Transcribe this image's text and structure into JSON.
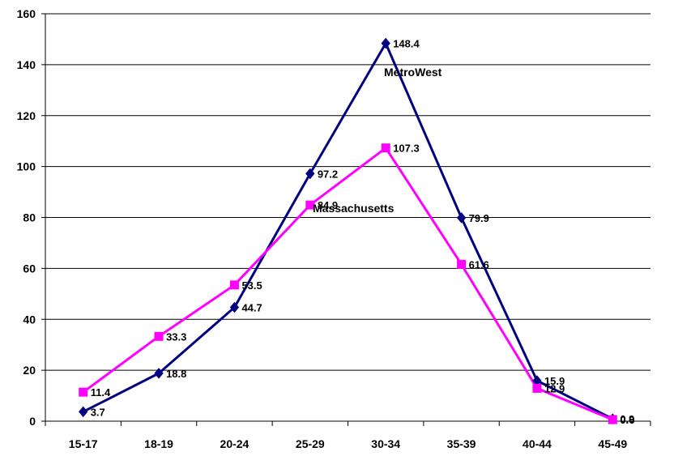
{
  "chart_data": {
    "type": "line",
    "title": "",
    "xlabel": "",
    "ylabel": "",
    "categories": [
      "15-17",
      "18-19",
      "20-24",
      "25-29",
      "30-34",
      "35-39",
      "40-44",
      "45-49"
    ],
    "ylim": [
      0,
      160
    ],
    "yticks": [
      "0",
      "20",
      "40",
      "60",
      "80",
      "100",
      "120",
      "140",
      "160"
    ],
    "grid": "horizontal",
    "legend": "none",
    "series": [
      {
        "name": "MetroWest",
        "color": "#000080",
        "marker": "diamond",
        "values": [
          3.7,
          18.8,
          44.7,
          97.2,
          148.4,
          79.9,
          15.9,
          0.9
        ],
        "labels": [
          "3.7",
          "18.8",
          "44.7",
          "97.2",
          "148.4",
          "79.9",
          "15.9",
          "0.9"
        ]
      },
      {
        "name": "Massachusetts",
        "color": "#ff00ff",
        "marker": "square",
        "values": [
          11.4,
          33.3,
          53.5,
          84.9,
          107.3,
          61.6,
          12.9,
          0.6
        ],
        "labels": [
          "11.4",
          "33.3",
          "53.5",
          "84.9",
          "107.3",
          "61.6",
          "12.9",
          "0.6"
        ]
      }
    ]
  }
}
